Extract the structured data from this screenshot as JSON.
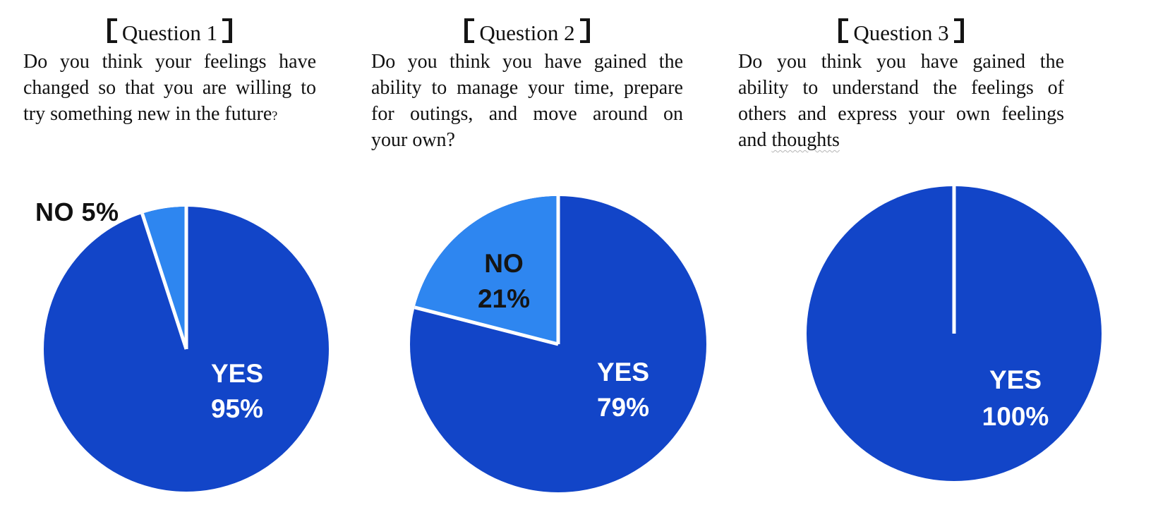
{
  "figure": {
    "background": "#ffffff"
  },
  "theme": {
    "yes_color": "#1245C8",
    "no_color": "#2E86F0",
    "divider_color": "#ffffff",
    "question_text_color": "#111111",
    "no_label_text_color": "#151515",
    "yes_label_text_color": "#ffffff"
  },
  "panels": [
    {
      "title_full": "【Question 1】",
      "title_text": "Question 1",
      "lines": [
        "Do you think your feelings have",
        "changed so that you are willing to"
      ],
      "last_line_text": "try something new in the future",
      "question_mark": "?",
      "no_label": "NO 5%",
      "yes_label": [
        "YES",
        "95%"
      ]
    },
    {
      "title_full": "【Question 2】",
      "title_text": "Question 2",
      "lines": [
        "Do you think you have gained the",
        "ability to manage your time, prepare",
        "for outings, and move around on"
      ],
      "last_line_text": "your own?",
      "no_label": [
        "NO",
        "21%"
      ],
      "yes_label": [
        "YES",
        "79%"
      ]
    },
    {
      "title_full": "【Question 3】",
      "title_text": "Question 3",
      "lines": [
        "Do you think you have gained the",
        "ability to understand the feelings of",
        "others and express your own feelings"
      ],
      "last_line_prefix": "and ",
      "squiggle_word": "thoughts",
      "yes_label": [
        "YES",
        "100%"
      ]
    }
  ],
  "chart_data": [
    {
      "type": "pie",
      "title": "【Question 1】",
      "question": "Do you think your feelings have changed so that you are willing to try something new in the future?",
      "categories": [
        "YES",
        "NO"
      ],
      "values": [
        95,
        5
      ],
      "unit": "percent",
      "colors": {
        "YES": "#1245C8",
        "NO": "#2E86F0"
      },
      "data_labels": {
        "YES": "YES 95%",
        "NO": "NO 5%"
      },
      "label_placement": {
        "YES": "inside-right",
        "NO": "outside-top-left"
      },
      "rotation": "YES starts at 12 o'clock and sweeps clockwise; NO wedge ends at 12 o'clock",
      "slice_divider": "white radial lines",
      "legend": false
    },
    {
      "type": "pie",
      "title": "【Question 2】",
      "question": "Do you think you have gained the ability to manage your time, prepare for outings, and move around on your own?",
      "categories": [
        "YES",
        "NO"
      ],
      "values": [
        79,
        21
      ],
      "unit": "percent",
      "colors": {
        "YES": "#1245C8",
        "NO": "#2E86F0"
      },
      "data_labels": {
        "YES": "YES 79%",
        "NO": "NO 21%"
      },
      "label_placement": {
        "YES": "inside-right",
        "NO": "inside-slice-upper-left"
      },
      "rotation": "YES starts at 12 o'clock and sweeps clockwise; NO wedge ends at 12 o'clock",
      "slice_divider": "white radial lines",
      "legend": false
    },
    {
      "type": "pie",
      "title": "【Question 3】",
      "question": "Do you think you have gained the ability to understand the feelings of others and express your own feelings and thoughts",
      "categories": [
        "YES",
        "NO"
      ],
      "values": [
        100,
        0
      ],
      "unit": "percent",
      "colors": {
        "YES": "#1245C8",
        "NO": "#2E86F0"
      },
      "data_labels": {
        "YES": "YES 100%"
      },
      "label_placement": {
        "YES": "inside-right"
      },
      "rotation": "single white slit from 12 o'clock to center",
      "slice_divider": "white radial line",
      "legend": false
    }
  ]
}
